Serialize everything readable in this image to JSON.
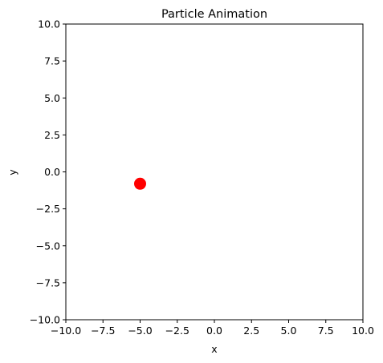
{
  "chart_data": {
    "type": "scatter",
    "title": "Particle Animation",
    "xlabel": "x",
    "ylabel": "y",
    "xlim": [
      -10,
      10
    ],
    "ylim": [
      -10,
      10
    ],
    "xticks": [
      -10,
      -7.5,
      -5,
      -2.5,
      0,
      2.5,
      5,
      7.5,
      10
    ],
    "yticks": [
      -10,
      -7.5,
      -5,
      -2.5,
      0,
      2.5,
      5,
      7.5,
      10
    ],
    "xtick_labels": [
      "−10.0",
      "−7.5",
      "−5.0",
      "−2.5",
      "0.0",
      "2.5",
      "5.0",
      "7.5",
      "10.0"
    ],
    "ytick_labels": [
      "−10.0",
      "−7.5",
      "−5.0",
      "−2.5",
      "0.0",
      "2.5",
      "5.0",
      "7.5",
      "10.0"
    ],
    "grid": false,
    "legend": "none",
    "series": [
      {
        "x": [
          -5.0
        ],
        "y": [
          -0.8
        ],
        "color": "#ff0000",
        "marker": "circle"
      }
    ]
  }
}
